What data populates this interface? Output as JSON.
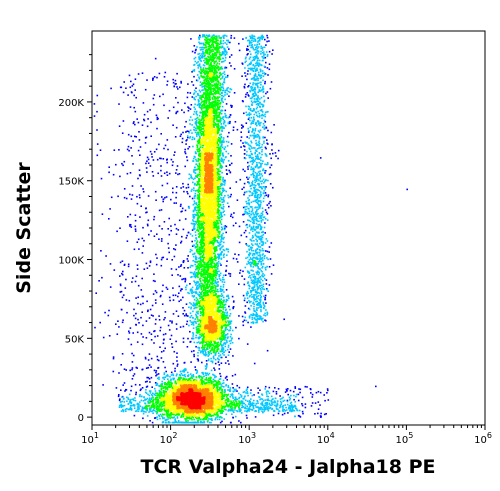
{
  "chart_data": {
    "type": "scatter",
    "subtype": "flow-cytometry-density-dot-plot",
    "title": "",
    "xlabel": "TCR Valpha24 - Jalpha18 PE",
    "ylabel": "Side Scatter",
    "x_scale": "log",
    "x_range": [
      10,
      1000000
    ],
    "y_scale": "linear",
    "y_range": [
      -5000,
      245000
    ],
    "x_ticks": [
      {
        "value": 10,
        "base": "10",
        "exp": "1"
      },
      {
        "value": 100,
        "base": "10",
        "exp": "2"
      },
      {
        "value": 1000,
        "base": "10",
        "exp": "3"
      },
      {
        "value": 10000,
        "base": "10",
        "exp": "4"
      },
      {
        "value": 100000,
        "base": "10",
        "exp": "5"
      },
      {
        "value": 1000000,
        "base": "10",
        "exp": "6"
      }
    ],
    "y_ticks": [
      {
        "value": 0,
        "label": "0"
      },
      {
        "value": 50000,
        "label": "50K"
      },
      {
        "value": 100000,
        "label": "100K"
      },
      {
        "value": 150000,
        "label": "150K"
      },
      {
        "value": 200000,
        "label": "200K"
      }
    ],
    "color_scale": [
      "#0000ff",
      "#00c8ff",
      "#00ff00",
      "#ffff00",
      "#ff8000",
      "#ff0000"
    ],
    "populations": [
      {
        "x_center": 180,
        "y_center": 12000,
        "relative_density": 1.0
      },
      {
        "x_center": 320,
        "y_center": 58000,
        "relative_density": 0.55
      },
      {
        "x_center": 290,
        "y_center": 150000,
        "relative_density": 0.6
      },
      {
        "x_center": 1300,
        "y_center": 185000,
        "relative_density": 0.3
      }
    ],
    "grid": false,
    "legend": "none"
  }
}
